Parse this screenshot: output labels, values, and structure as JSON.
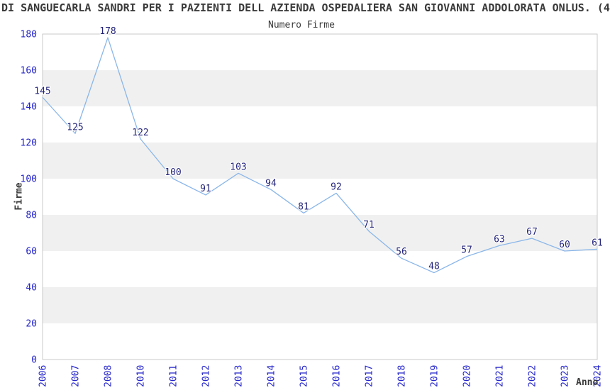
{
  "header": {
    "title": "DI SANGUECARLA SANDRI PER I PAZIENTI DELL AZIENDA OSPEDALIERA SAN GIOVANNI ADDOLORATA ONLUS. (4",
    "subtitle": "Numero Firme"
  },
  "axes": {
    "ylabel": "Firme",
    "xlabel": "Anno"
  },
  "chart_data": {
    "type": "line",
    "title": "DI SANGUECARLA SANDRI PER I PAZIENTI DELL AZIENDA OSPEDALIERA SAN GIOVANNI ADDOLORATA ONLUS. (4",
    "subtitle": "Numero Firme",
    "xlabel": "Anno",
    "ylabel": "Firme",
    "categories": [
      "2006",
      "2007",
      "2008",
      "2010",
      "2011",
      "2012",
      "2013",
      "2014",
      "2015",
      "2016",
      "2017",
      "2018",
      "2019",
      "2020",
      "2021",
      "2022",
      "2023",
      "2024"
    ],
    "values": [
      145,
      125,
      178,
      122,
      100,
      91,
      103,
      94,
      81,
      92,
      71,
      56,
      48,
      57,
      63,
      67,
      60,
      61
    ],
    "ylim": [
      0,
      180
    ],
    "yticks": [
      0,
      20,
      40,
      60,
      80,
      100,
      120,
      140,
      160,
      180
    ],
    "x_axis_note": "year 2009 is absent from the axis",
    "legend": "none",
    "grid": "alternating horizontal gray bands every 20 units",
    "colors": {
      "line": "#8ab6e9",
      "tick_label": "#2323cb",
      "value_label": "#24247a",
      "band": "#f0f0f0",
      "plot_border": "#c9c9c9",
      "text": "#3a3a3a",
      "background": "#ffffff"
    }
  }
}
